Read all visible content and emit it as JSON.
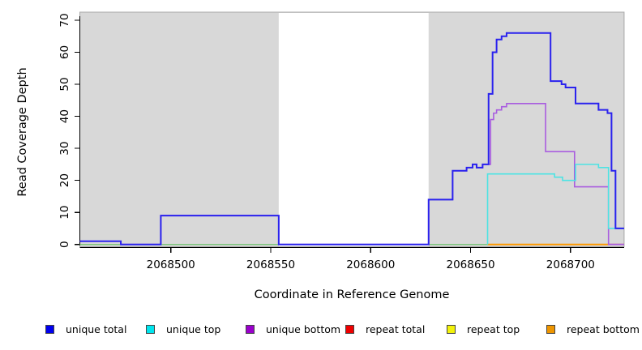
{
  "chart_data": {
    "type": "line",
    "subtype": "step-coverage-plot",
    "title": "",
    "xlabel": "Coordinate in Reference Genome",
    "ylabel": "Read Coverage Depth",
    "xlim": [
      2068454.5,
      2068726.8
    ],
    "ylim": [
      0,
      70
    ],
    "grid": false,
    "legend_position": "bottom",
    "x_tick_values": [
      2068500,
      2068550,
      2068600,
      2068650,
      2068700
    ],
    "x_tick_labels": [
      "2068500",
      "2068550",
      "2068600",
      "2068650",
      "2068700"
    ],
    "y_tick_values": [
      0,
      10,
      20,
      30,
      40,
      50,
      60,
      70
    ],
    "y_tick_labels": [
      "0",
      "10",
      "20",
      "30",
      "40",
      "50",
      "60",
      "70"
    ],
    "shaded_band": {
      "x0": 2068454.5,
      "x1": 2068726.8,
      "color": "#d8d8d8",
      "border_color": "#a8a8a8"
    },
    "white_gap": {
      "x0": 2068554,
      "x1": 2068629,
      "color": "#ffffff"
    },
    "series": [
      {
        "name": "baseline-left-green",
        "color": "#7cc47c",
        "width": 1.5,
        "end": 2068658.5,
        "steps": [
          [
            2068454.5,
            0
          ]
        ]
      },
      {
        "name": "repeat-bottom",
        "color": "#ff9900",
        "width": 2,
        "end": 2068719,
        "steps": [
          [
            2068658.5,
            0
          ]
        ]
      },
      {
        "name": "baseline-right-pink",
        "color": "#cc6688",
        "width": 1.8,
        "end": 2068726.8,
        "steps": [
          [
            2068719,
            0
          ]
        ]
      },
      {
        "name": "unique-bottom",
        "color": "#a95cdf",
        "width": 1.6,
        "end": 2068726.8,
        "steps": [
          [
            2068454.5,
            1
          ],
          [
            2068475,
            0
          ],
          [
            2068495,
            9
          ],
          [
            2068554,
            0
          ],
          [
            2068629,
            14
          ],
          [
            2068641,
            23
          ],
          [
            2068648,
            24
          ],
          [
            2068651,
            25
          ],
          [
            2068653,
            24
          ],
          [
            2068656,
            25
          ],
          [
            2068660,
            39
          ],
          [
            2068661.5,
            41
          ],
          [
            2068663,
            42
          ],
          [
            2068665.5,
            43
          ],
          [
            2068668,
            44
          ],
          [
            2068687.5,
            29
          ],
          [
            2068702,
            18
          ],
          [
            2068719,
            0
          ]
        ]
      },
      {
        "name": "unique-top",
        "color": "#4de3e3",
        "width": 1.6,
        "end": 2068726.8,
        "steps": [
          [
            2068658.5,
            0
          ],
          [
            2068658.5,
            22
          ],
          [
            2068692,
            21
          ],
          [
            2068696,
            20
          ],
          [
            2068702.5,
            25
          ],
          [
            2068714,
            24
          ],
          [
            2068719,
            5
          ]
        ]
      },
      {
        "name": "unique-total",
        "color": "#2a22ee",
        "width": 2,
        "end": 2068726.8,
        "steps": [
          [
            2068454.5,
            1
          ],
          [
            2068475,
            0
          ],
          [
            2068495,
            9
          ],
          [
            2068554,
            0
          ],
          [
            2068629,
            14
          ],
          [
            2068641,
            23
          ],
          [
            2068648,
            24
          ],
          [
            2068651,
            25
          ],
          [
            2068653,
            24
          ],
          [
            2068656,
            25
          ],
          [
            2068659,
            47
          ],
          [
            2068661,
            60
          ],
          [
            2068663,
            64
          ],
          [
            2068665.5,
            65
          ],
          [
            2068668,
            66
          ],
          [
            2068690,
            51
          ],
          [
            2068695.5,
            50
          ],
          [
            2068697.5,
            49
          ],
          [
            2068702.5,
            44
          ],
          [
            2068714,
            42
          ],
          [
            2068718.5,
            41
          ],
          [
            2068720.5,
            23
          ],
          [
            2068722.5,
            5
          ]
        ]
      }
    ],
    "legend": [
      {
        "label": "unique total",
        "color": "#0000ee"
      },
      {
        "label": "unique top",
        "color": "#00e5ee"
      },
      {
        "label": "unique bottom",
        "color": "#9a00cc"
      },
      {
        "label": "repeat total",
        "color": "#ee0000"
      },
      {
        "label": "repeat top",
        "color": "#f2f20a"
      },
      {
        "label": "repeat bottom",
        "color": "#ee9500"
      }
    ]
  }
}
